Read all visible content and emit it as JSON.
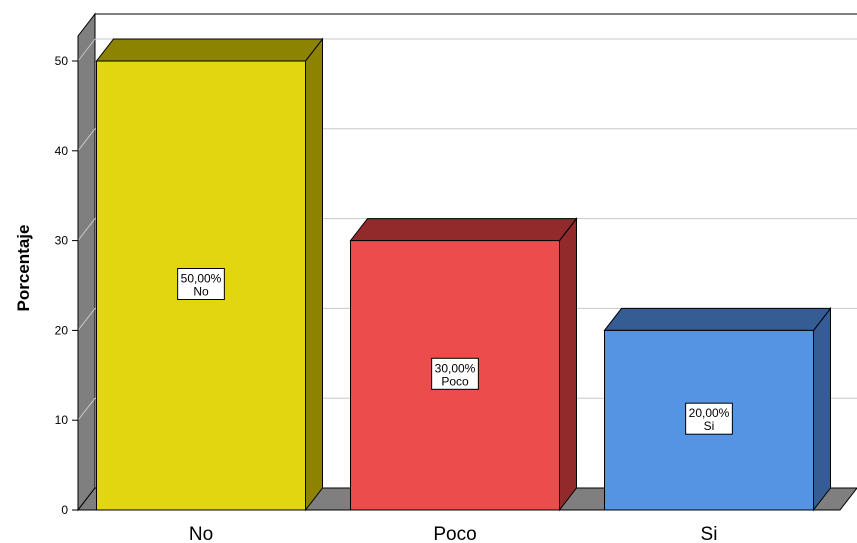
{
  "chart_data": {
    "type": "bar",
    "categories": [
      "No",
      "Poco",
      "Si"
    ],
    "values": [
      50,
      30,
      20
    ],
    "data_labels": [
      {
        "value": "50,00%",
        "category": "No"
      },
      {
        "value": "30,00%",
        "category": "Poco"
      },
      {
        "value": "20,00%",
        "category": "Si"
      }
    ],
    "colors": [
      "#e1d60f",
      "#ec4c4c",
      "#5594e3"
    ],
    "side_colors": [
      "#8c8300",
      "#922a2c",
      "#355d94"
    ],
    "top_colors": [
      "#8c8300",
      "#922a2c",
      "#355d94"
    ],
    "ylabel": "Porcentaje",
    "xlabel": "",
    "title": "",
    "ylim": [
      0,
      50
    ],
    "yticks": [
      0,
      10,
      20,
      30,
      40,
      50
    ],
    "grid": true,
    "style": "3d"
  }
}
